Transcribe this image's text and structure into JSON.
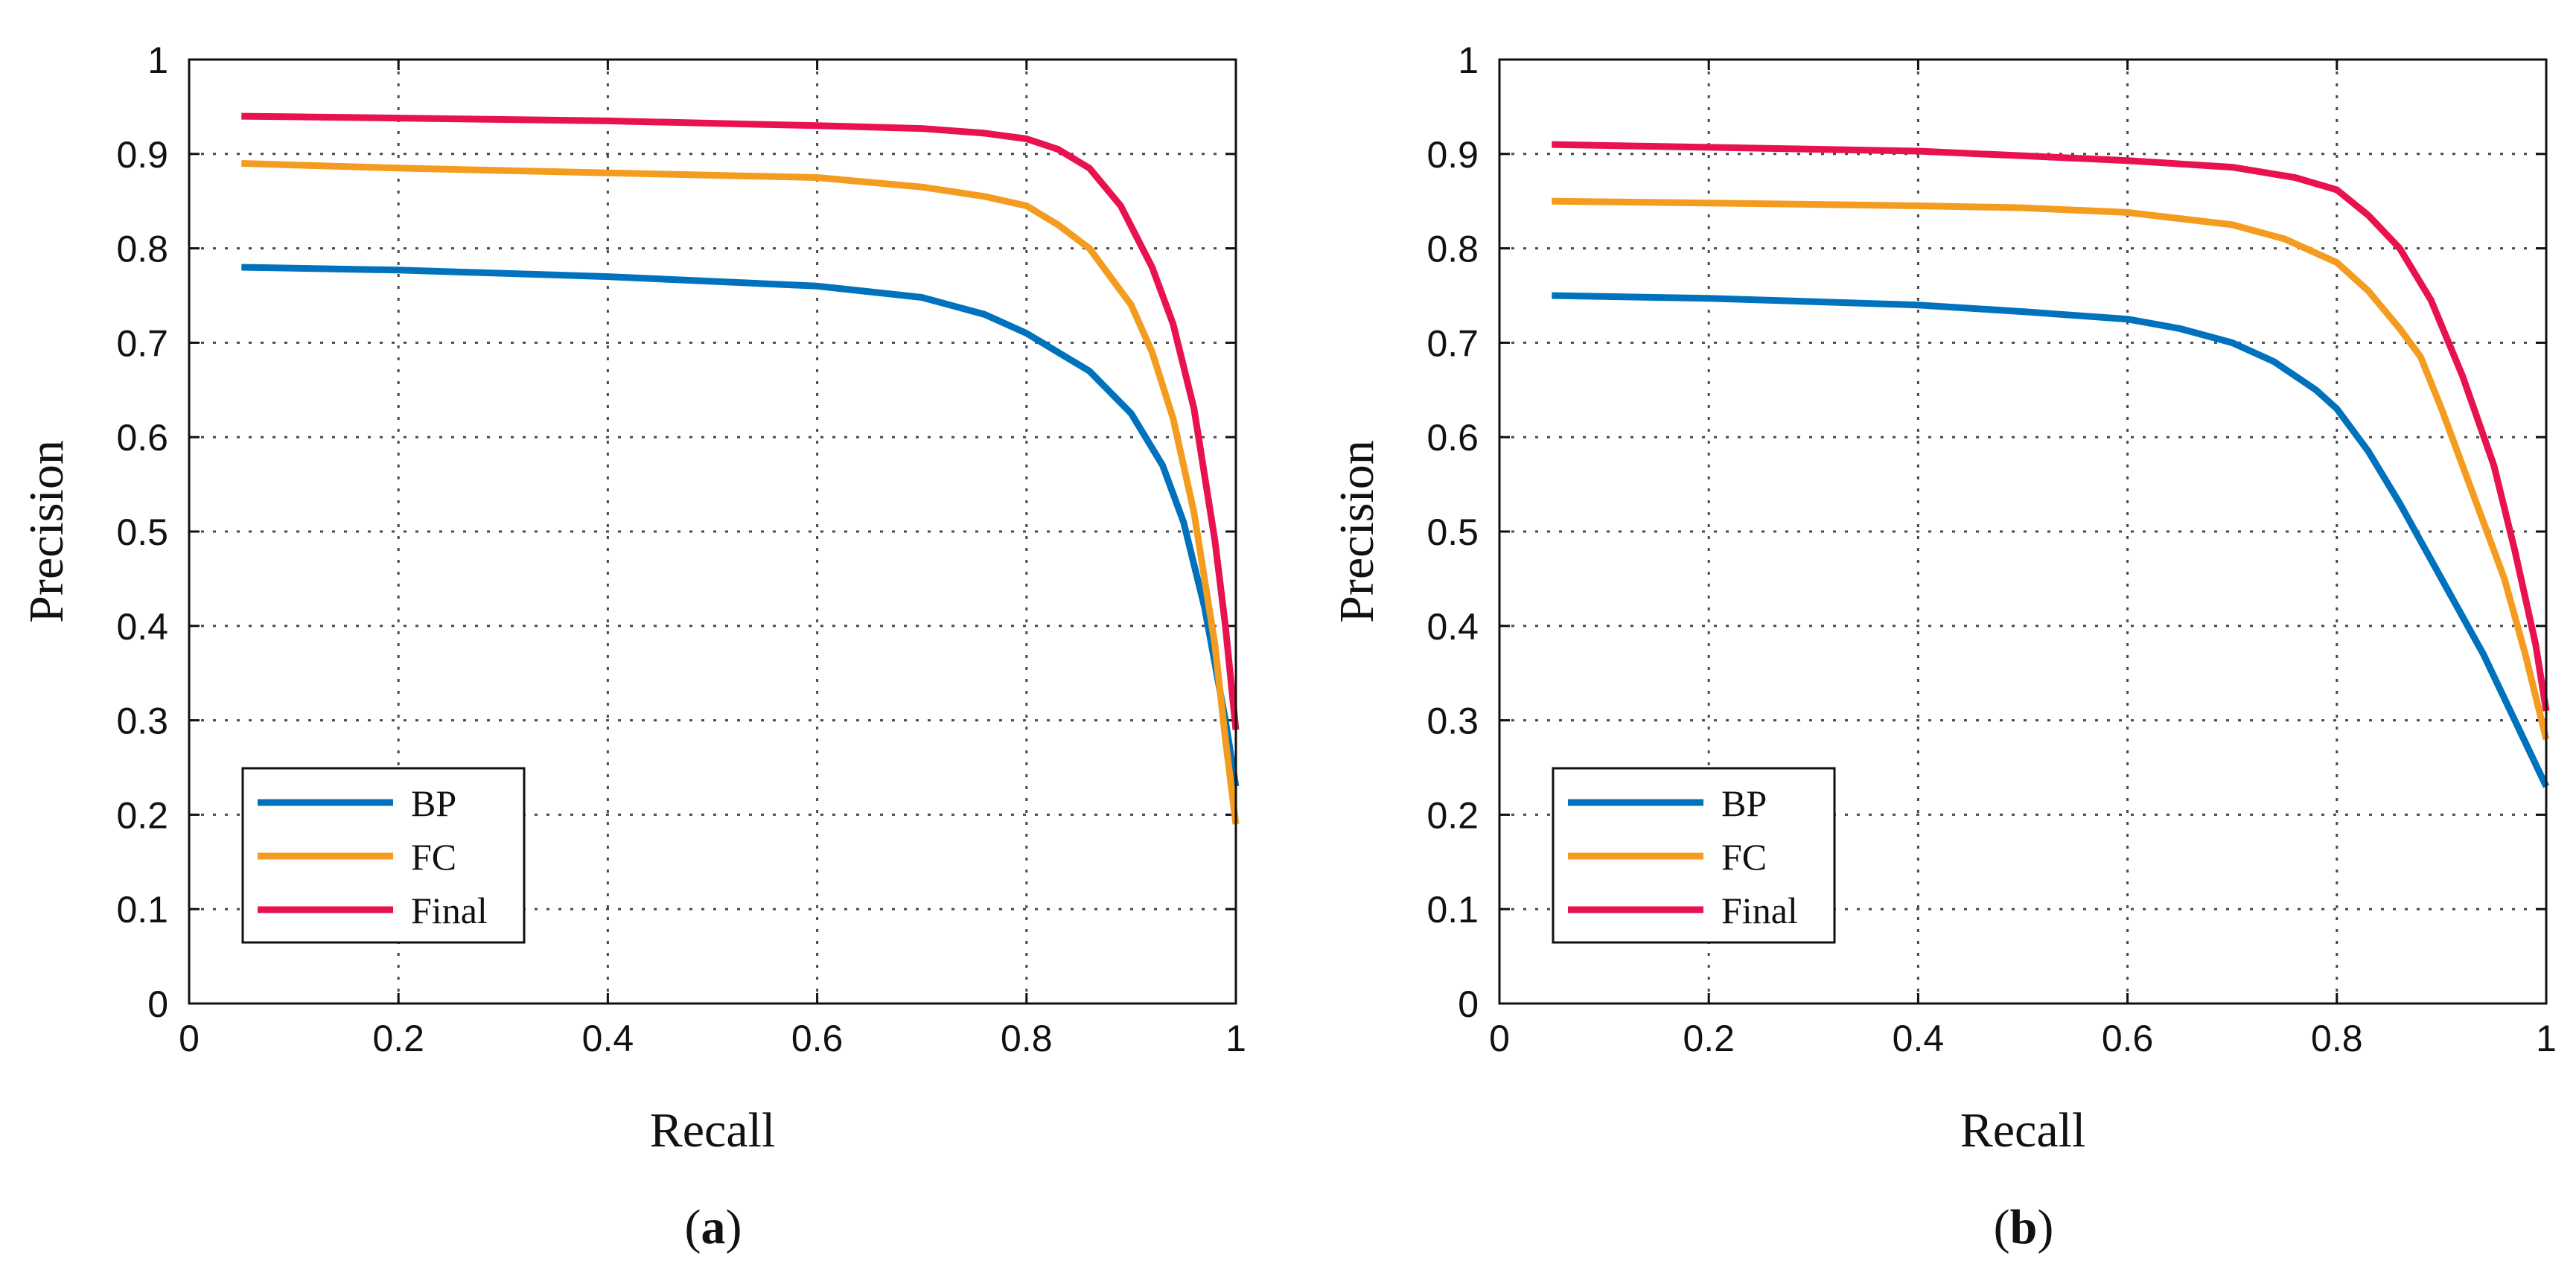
{
  "chart_data": [
    {
      "type": "line",
      "caption_letter": "a",
      "xlabel": "Recall",
      "ylabel": "Precision",
      "xlim": [
        0,
        1
      ],
      "ylim": [
        0,
        1
      ],
      "grid": true,
      "legend_position": "bottom-left",
      "x_ticks": [
        "0",
        "0.2",
        "0.4",
        "0.6",
        "0.8",
        "1"
      ],
      "y_ticks": [
        "0",
        "0.1",
        "0.2",
        "0.3",
        "0.4",
        "0.5",
        "0.6",
        "0.7",
        "0.8",
        "0.9",
        "1"
      ],
      "series": [
        {
          "name": "BP",
          "color": "#0072BD",
          "points": [
            [
              0.05,
              0.78
            ],
            [
              0.2,
              0.777
            ],
            [
              0.4,
              0.77
            ],
            [
              0.6,
              0.76
            ],
            [
              0.7,
              0.748
            ],
            [
              0.76,
              0.73
            ],
            [
              0.8,
              0.71
            ],
            [
              0.83,
              0.69
            ],
            [
              0.86,
              0.67
            ],
            [
              0.9,
              0.625
            ],
            [
              0.93,
              0.57
            ],
            [
              0.95,
              0.51
            ],
            [
              0.97,
              0.42
            ],
            [
              0.98,
              0.36
            ],
            [
              0.99,
              0.3
            ],
            [
              1.0,
              0.23
            ]
          ]
        },
        {
          "name": "FC",
          "color": "#F39C1F",
          "points": [
            [
              0.05,
              0.89
            ],
            [
              0.2,
              0.885
            ],
            [
              0.4,
              0.88
            ],
            [
              0.6,
              0.875
            ],
            [
              0.7,
              0.865
            ],
            [
              0.76,
              0.855
            ],
            [
              0.8,
              0.845
            ],
            [
              0.83,
              0.825
            ],
            [
              0.86,
              0.8
            ],
            [
              0.9,
              0.74
            ],
            [
              0.92,
              0.69
            ],
            [
              0.94,
              0.62
            ],
            [
              0.96,
              0.52
            ],
            [
              0.98,
              0.38
            ],
            [
              0.99,
              0.28
            ],
            [
              1.0,
              0.19
            ]
          ]
        },
        {
          "name": "Final",
          "color": "#E8124F",
          "points": [
            [
              0.05,
              0.94
            ],
            [
              0.2,
              0.938
            ],
            [
              0.4,
              0.935
            ],
            [
              0.6,
              0.93
            ],
            [
              0.7,
              0.927
            ],
            [
              0.76,
              0.922
            ],
            [
              0.8,
              0.916
            ],
            [
              0.83,
              0.905
            ],
            [
              0.86,
              0.885
            ],
            [
              0.89,
              0.845
            ],
            [
              0.92,
              0.78
            ],
            [
              0.94,
              0.72
            ],
            [
              0.96,
              0.63
            ],
            [
              0.98,
              0.49
            ],
            [
              0.99,
              0.4
            ],
            [
              1.0,
              0.29
            ]
          ]
        }
      ]
    },
    {
      "type": "line",
      "caption_letter": "b",
      "xlabel": "Recall",
      "ylabel": "Precision",
      "xlim": [
        0,
        1
      ],
      "ylim": [
        0,
        1
      ],
      "grid": true,
      "legend_position": "bottom-left",
      "x_ticks": [
        "0",
        "0.2",
        "0.4",
        "0.6",
        "0.8",
        "1"
      ],
      "y_ticks": [
        "0",
        "0.1",
        "0.2",
        "0.3",
        "0.4",
        "0.5",
        "0.6",
        "0.7",
        "0.8",
        "0.9",
        "1"
      ],
      "series": [
        {
          "name": "BP",
          "color": "#0072BD",
          "points": [
            [
              0.05,
              0.75
            ],
            [
              0.2,
              0.747
            ],
            [
              0.4,
              0.74
            ],
            [
              0.5,
              0.733
            ],
            [
              0.6,
              0.725
            ],
            [
              0.65,
              0.715
            ],
            [
              0.7,
              0.7
            ],
            [
              0.74,
              0.68
            ],
            [
              0.78,
              0.65
            ],
            [
              0.8,
              0.63
            ],
            [
              0.83,
              0.585
            ],
            [
              0.86,
              0.53
            ],
            [
              0.9,
              0.45
            ],
            [
              0.94,
              0.37
            ],
            [
              0.97,
              0.3
            ],
            [
              1.0,
              0.23
            ]
          ]
        },
        {
          "name": "FC",
          "color": "#F39C1F",
          "points": [
            [
              0.05,
              0.85
            ],
            [
              0.2,
              0.848
            ],
            [
              0.4,
              0.845
            ],
            [
              0.5,
              0.843
            ],
            [
              0.6,
              0.838
            ],
            [
              0.7,
              0.825
            ],
            [
              0.75,
              0.81
            ],
            [
              0.8,
              0.785
            ],
            [
              0.83,
              0.755
            ],
            [
              0.86,
              0.715
            ],
            [
              0.88,
              0.685
            ],
            [
              0.9,
              0.63
            ],
            [
              0.93,
              0.54
            ],
            [
              0.96,
              0.45
            ],
            [
              0.98,
              0.37
            ],
            [
              1.0,
              0.28
            ]
          ]
        },
        {
          "name": "Final",
          "color": "#E8124F",
          "points": [
            [
              0.05,
              0.91
            ],
            [
              0.2,
              0.907
            ],
            [
              0.4,
              0.903
            ],
            [
              0.5,
              0.898
            ],
            [
              0.6,
              0.893
            ],
            [
              0.7,
              0.886
            ],
            [
              0.76,
              0.875
            ],
            [
              0.8,
              0.862
            ],
            [
              0.83,
              0.835
            ],
            [
              0.86,
              0.8
            ],
            [
              0.89,
              0.745
            ],
            [
              0.92,
              0.665
            ],
            [
              0.95,
              0.57
            ],
            [
              0.97,
              0.48
            ],
            [
              0.99,
              0.38
            ],
            [
              1.0,
              0.31
            ]
          ]
        }
      ]
    }
  ]
}
